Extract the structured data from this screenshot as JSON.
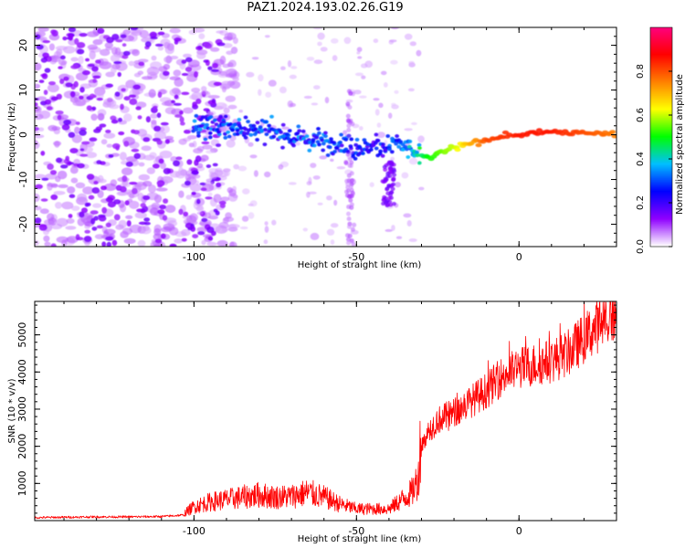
{
  "title": "PAZ1.2024.193.02.26.G19",
  "chart_data": [
    {
      "type": "heatmap",
      "xlabel": "Height of straight line (km)",
      "ylabel": "Frequency (Hz)",
      "xlim": [
        -149,
        30
      ],
      "ylim": [
        -25,
        24
      ],
      "xticks": [
        -100,
        -50,
        0
      ],
      "yticks": [
        -20,
        -10,
        0,
        10,
        20
      ],
      "colorbar": {
        "label": "Normalized spectral amplitude",
        "range": [
          0,
          1
        ],
        "ticks": [
          "0.0",
          "0.2",
          "0.4",
          "0.6",
          "0.8"
        ],
        "colors": [
          "#ffffff",
          "#8f00ff",
          "#0000ff",
          "#00bfff",
          "#00ff00",
          "#ffff00",
          "#ff8000",
          "#ff0000",
          "#ff0080"
        ]
      },
      "ridge": {
        "x": [
          -95,
          -80,
          -65,
          -55,
          -45,
          -38,
          -32,
          -28,
          -20,
          -10,
          0,
          10,
          20,
          30
        ],
        "y": [
          2,
          1,
          -1,
          -2,
          -3,
          -2,
          -4,
          -5,
          -3,
          -1,
          0,
          0.5,
          0.5,
          0
        ],
        "amplitude": [
          0.3,
          0.3,
          0.3,
          0.3,
          0.25,
          0.3,
          0.4,
          0.5,
          0.6,
          0.8,
          0.85,
          0.85,
          0.8,
          0.75
        ]
      }
    },
    {
      "type": "line",
      "xlabel": "Height of straight line (km)",
      "ylabel": "SNR (10 * v/v)",
      "xlim": [
        -149,
        30
      ],
      "ylim": [
        0,
        5900
      ],
      "xticks": [
        -100,
        -50,
        0
      ],
      "yticks": [
        1000,
        2000,
        3000,
        4000,
        5000
      ],
      "color": "#ff0000",
      "series": [
        {
          "x": [
            -149,
            -140,
            -130,
            -120,
            -110,
            -103,
            -100,
            -95,
            -90,
            -85,
            -80,
            -75,
            -70,
            -65,
            -60,
            -55,
            -50,
            -45,
            -40,
            -37,
            -33,
            -31,
            -30,
            -28,
            -25,
            -20,
            -15,
            -10,
            -5,
            0,
            5,
            10,
            15,
            20,
            25,
            30
          ],
          "values": [
            80,
            90,
            100,
            100,
            110,
            150,
            300,
            400,
            450,
            500,
            550,
            500,
            520,
            600,
            500,
            350,
            250,
            250,
            250,
            400,
            600,
            900,
            2000,
            2400,
            2700,
            2900,
            3200,
            3500,
            3900,
            4100,
            4200,
            4300,
            4500,
            4900,
            5300,
            5600
          ]
        }
      ]
    }
  ]
}
